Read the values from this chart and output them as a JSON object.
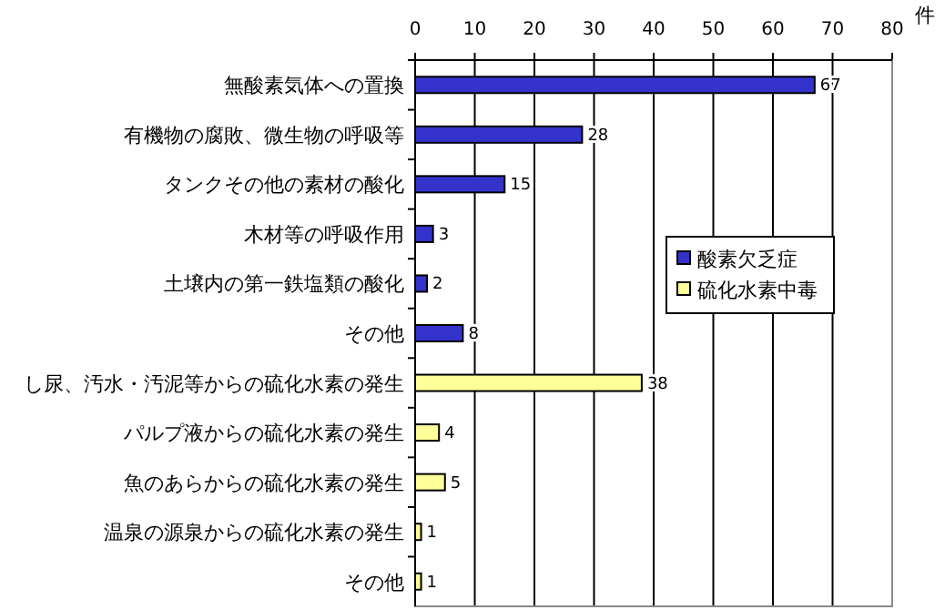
{
  "chart_data": {
    "type": "bar",
    "orientation": "horizontal",
    "xlabel": "件",
    "categories": [
      "無酸素気体への置換",
      "有機物の腐敗、微生物の呼吸等",
      "タンクその他の素材の酸化",
      "木材等の呼吸作用",
      "土壌内の第一鉄塩類の酸化",
      "その他",
      "し尿、汚水・汚泥等からの硫化水素の発生",
      "パルプ液からの硫化水素の発生",
      "魚のあらからの硫化水素の発生",
      "温泉の源泉からの硫化水素の発生",
      "その他"
    ],
    "series": [
      {
        "name": "酸素欠乏症",
        "color": "#3333cc",
        "values": [
          67,
          28,
          15,
          3,
          2,
          8,
          null,
          null,
          null,
          null,
          null
        ]
      },
      {
        "name": "硫化水素中毒",
        "color": "#ffff99",
        "values": [
          null,
          null,
          null,
          null,
          null,
          null,
          38,
          4,
          5,
          1,
          1
        ]
      }
    ],
    "xlim": [
      0,
      80
    ],
    "xticks": [
      0,
      10,
      20,
      30,
      40,
      50,
      60,
      70,
      80
    ],
    "grid": "x",
    "legend": "right",
    "data_labels": true
  }
}
